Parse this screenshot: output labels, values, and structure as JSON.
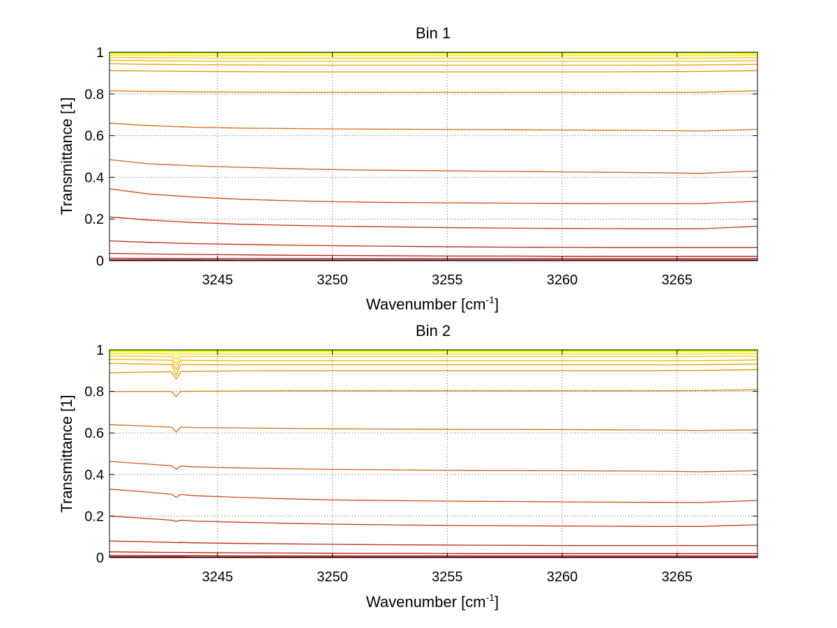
{
  "chart_data": [
    {
      "type": "line",
      "title": "Bin 1",
      "xlabel_main": "Wavenumber [cm",
      "xlabel_sup": "-1",
      "xlabel_end": "]",
      "ylabel": "Transmittance [1]",
      "xlim": [
        3240.3,
        3268.5
      ],
      "ylim": [
        0,
        1
      ],
      "xticks": [
        3245,
        3250,
        3255,
        3260,
        3265
      ],
      "yticks": [
        0,
        0.2,
        0.4,
        0.6,
        0.8,
        1
      ],
      "xtick_labels": [
        "3245",
        "3250",
        "3255",
        "3260",
        "3265"
      ],
      "ytick_labels": [
        "0",
        "0.2",
        "0.4",
        "0.6",
        "0.8",
        "1"
      ],
      "grid": true,
      "x": [
        3240.3,
        3242,
        3244,
        3246,
        3248,
        3250,
        3252,
        3254,
        3256,
        3258,
        3260,
        3262,
        3264,
        3266,
        3268.5
      ],
      "series": [
        {
          "color": "#00e5c8",
          "values": [
            1.0,
            1.0,
            1.0,
            1.0,
            1.0,
            1.0,
            1.0,
            1.0,
            1.0,
            1.0,
            1.0,
            1.0,
            1.0,
            1.0,
            1.0
          ]
        },
        {
          "color": "#c8ff00",
          "values": [
            0.997,
            0.997,
            0.997,
            0.997,
            0.997,
            0.997,
            0.997,
            0.997,
            0.997,
            0.997,
            0.997,
            0.997,
            0.997,
            0.997,
            0.997
          ]
        },
        {
          "color": "#ffff00",
          "values": [
            0.993,
            0.993,
            0.993,
            0.993,
            0.993,
            0.993,
            0.993,
            0.993,
            0.993,
            0.993,
            0.993,
            0.993,
            0.993,
            0.993,
            0.993
          ]
        },
        {
          "color": "#ffe000",
          "values": [
            0.985,
            0.985,
            0.984,
            0.984,
            0.984,
            0.984,
            0.984,
            0.984,
            0.984,
            0.984,
            0.984,
            0.984,
            0.984,
            0.984,
            0.985
          ]
        },
        {
          "color": "#ffc400",
          "values": [
            0.975,
            0.974,
            0.973,
            0.972,
            0.972,
            0.972,
            0.972,
            0.972,
            0.972,
            0.972,
            0.972,
            0.972,
            0.972,
            0.972,
            0.974
          ]
        },
        {
          "color": "#f5b000",
          "values": [
            0.962,
            0.96,
            0.958,
            0.957,
            0.957,
            0.957,
            0.957,
            0.957,
            0.957,
            0.957,
            0.957,
            0.957,
            0.957,
            0.957,
            0.96
          ]
        },
        {
          "color": "#eba000",
          "values": [
            0.945,
            0.942,
            0.94,
            0.939,
            0.938,
            0.938,
            0.938,
            0.938,
            0.938,
            0.938,
            0.938,
            0.938,
            0.938,
            0.939,
            0.942
          ]
        },
        {
          "color": "#e39000",
          "values": [
            0.912,
            0.91,
            0.908,
            0.907,
            0.906,
            0.906,
            0.906,
            0.906,
            0.906,
            0.906,
            0.906,
            0.906,
            0.907,
            0.908,
            0.912
          ]
        },
        {
          "color": "#db7a00",
          "values": [
            0.815,
            0.812,
            0.81,
            0.809,
            0.808,
            0.808,
            0.808,
            0.808,
            0.808,
            0.808,
            0.808,
            0.808,
            0.808,
            0.808,
            0.815
          ]
        },
        {
          "color": "#d96a10",
          "values": [
            0.66,
            0.648,
            0.64,
            0.636,
            0.634,
            0.632,
            0.631,
            0.63,
            0.629,
            0.628,
            0.627,
            0.626,
            0.625,
            0.622,
            0.63
          ]
        },
        {
          "color": "#d65a18",
          "values": [
            0.485,
            0.465,
            0.455,
            0.448,
            0.442,
            0.437,
            0.434,
            0.432,
            0.43,
            0.428,
            0.426,
            0.424,
            0.422,
            0.419,
            0.43
          ]
        },
        {
          "color": "#cf4a18",
          "values": [
            0.345,
            0.32,
            0.305,
            0.295,
            0.288,
            0.283,
            0.28,
            0.278,
            0.277,
            0.276,
            0.275,
            0.274,
            0.274,
            0.274,
            0.285
          ]
        },
        {
          "color": "#c63818",
          "values": [
            0.21,
            0.195,
            0.183,
            0.175,
            0.17,
            0.166,
            0.163,
            0.16,
            0.158,
            0.156,
            0.155,
            0.154,
            0.153,
            0.153,
            0.165
          ]
        },
        {
          "color": "#c02818",
          "values": [
            0.095,
            0.088,
            0.082,
            0.078,
            0.075,
            0.072,
            0.07,
            0.068,
            0.066,
            0.065,
            0.064,
            0.063,
            0.063,
            0.063,
            0.063
          ]
        },
        {
          "color": "#b81a14",
          "values": [
            0.035,
            0.032,
            0.03,
            0.028,
            0.026,
            0.025,
            0.024,
            0.023,
            0.022,
            0.022,
            0.021,
            0.021,
            0.021,
            0.021,
            0.021
          ]
        },
        {
          "color": "#aa0e10",
          "values": [
            0.012,
            0.011,
            0.01,
            0.01,
            0.009,
            0.009,
            0.009,
            0.009,
            0.009,
            0.009,
            0.009,
            0.009,
            0.009,
            0.009,
            0.009
          ]
        },
        {
          "color": "#960808",
          "values": [
            0.004,
            0.004,
            0.004,
            0.003,
            0.003,
            0.003,
            0.003,
            0.003,
            0.003,
            0.003,
            0.003,
            0.003,
            0.003,
            0.003,
            0.003
          ]
        },
        {
          "color": "#800000",
          "values": [
            0.001,
            0.001,
            0.001,
            0.001,
            0.001,
            0.001,
            0.001,
            0.001,
            0.001,
            0.001,
            0.001,
            0.001,
            0.001,
            0.001,
            0.001
          ]
        }
      ]
    },
    {
      "type": "line",
      "title": "Bin 2",
      "xlabel_main": "Wavenumber [cm",
      "xlabel_sup": "-1",
      "xlabel_end": "]",
      "ylabel": "Transmittance [1]",
      "xlim": [
        3240.3,
        3268.5
      ],
      "ylim": [
        0,
        1
      ],
      "xticks": [
        3245,
        3250,
        3255,
        3260,
        3265
      ],
      "yticks": [
        0,
        0.2,
        0.4,
        0.6,
        0.8,
        1
      ],
      "xtick_labels": [
        "3245",
        "3250",
        "3255",
        "3260",
        "3265"
      ],
      "ytick_labels": [
        "0",
        "0.2",
        "0.4",
        "0.6",
        "0.8",
        "1"
      ],
      "grid": true,
      "x": [
        3240.3,
        3242,
        3243.0,
        3243.2,
        3243.4,
        3244,
        3246,
        3248,
        3250,
        3252,
        3254,
        3256,
        3258,
        3260,
        3262,
        3264,
        3266,
        3268.5
      ],
      "series": [
        {
          "color": "#00e5c8",
          "values": [
            1.0,
            1.0,
            1.0,
            0.998,
            1.0,
            1.0,
            1.0,
            1.0,
            1.0,
            1.0,
            1.0,
            1.0,
            1.0,
            1.0,
            1.0,
            1.0,
            1.0,
            1.0
          ]
        },
        {
          "color": "#c8ff00",
          "values": [
            0.996,
            0.996,
            0.996,
            0.99,
            0.996,
            0.996,
            0.996,
            0.996,
            0.996,
            0.996,
            0.996,
            0.996,
            0.996,
            0.996,
            0.996,
            0.996,
            0.996,
            0.996
          ]
        },
        {
          "color": "#ffff00",
          "values": [
            0.991,
            0.991,
            0.991,
            0.975,
            0.991,
            0.991,
            0.991,
            0.991,
            0.991,
            0.991,
            0.991,
            0.991,
            0.991,
            0.991,
            0.991,
            0.991,
            0.991,
            0.991
          ]
        },
        {
          "color": "#ffe000",
          "values": [
            0.982,
            0.982,
            0.981,
            0.955,
            0.981,
            0.981,
            0.981,
            0.981,
            0.981,
            0.981,
            0.981,
            0.981,
            0.981,
            0.981,
            0.981,
            0.981,
            0.981,
            0.982
          ]
        },
        {
          "color": "#ffc400",
          "values": [
            0.97,
            0.969,
            0.968,
            0.93,
            0.968,
            0.968,
            0.968,
            0.968,
            0.968,
            0.968,
            0.968,
            0.968,
            0.968,
            0.968,
            0.968,
            0.968,
            0.968,
            0.97
          ]
        },
        {
          "color": "#f5b000",
          "values": [
            0.955,
            0.952,
            0.95,
            0.905,
            0.95,
            0.949,
            0.948,
            0.948,
            0.948,
            0.948,
            0.948,
            0.948,
            0.948,
            0.948,
            0.948,
            0.948,
            0.948,
            0.952
          ]
        },
        {
          "color": "#eba000",
          "values": [
            0.935,
            0.932,
            0.93,
            0.88,
            0.93,
            0.929,
            0.928,
            0.928,
            0.928,
            0.928,
            0.928,
            0.928,
            0.928,
            0.928,
            0.928,
            0.928,
            0.929,
            0.932
          ]
        },
        {
          "color": "#e39000",
          "values": [
            0.89,
            0.893,
            0.895,
            0.86,
            0.895,
            0.897,
            0.899,
            0.9,
            0.9,
            0.9,
            0.9,
            0.9,
            0.9,
            0.9,
            0.9,
            0.9,
            0.901,
            0.905
          ]
        },
        {
          "color": "#db7a00",
          "values": [
            0.8,
            0.8,
            0.8,
            0.775,
            0.8,
            0.801,
            0.802,
            0.803,
            0.803,
            0.803,
            0.803,
            0.803,
            0.803,
            0.803,
            0.803,
            0.803,
            0.804,
            0.808
          ]
        },
        {
          "color": "#d96a10",
          "values": [
            0.64,
            0.633,
            0.628,
            0.605,
            0.628,
            0.626,
            0.624,
            0.622,
            0.62,
            0.619,
            0.618,
            0.617,
            0.617,
            0.616,
            0.615,
            0.614,
            0.612,
            0.615
          ]
        },
        {
          "color": "#d65a18",
          "values": [
            0.463,
            0.45,
            0.442,
            0.425,
            0.441,
            0.437,
            0.432,
            0.428,
            0.425,
            0.423,
            0.421,
            0.42,
            0.419,
            0.418,
            0.417,
            0.416,
            0.413,
            0.418
          ]
        },
        {
          "color": "#cf4a18",
          "values": [
            0.33,
            0.315,
            0.305,
            0.29,
            0.304,
            0.298,
            0.29,
            0.283,
            0.278,
            0.275,
            0.273,
            0.271,
            0.27,
            0.268,
            0.267,
            0.266,
            0.265,
            0.275
          ]
        },
        {
          "color": "#c63818",
          "values": [
            0.2,
            0.188,
            0.18,
            0.175,
            0.18,
            0.176,
            0.17,
            0.165,
            0.161,
            0.158,
            0.156,
            0.154,
            0.153,
            0.152,
            0.151,
            0.15,
            0.15,
            0.158
          ]
        },
        {
          "color": "#c02818",
          "values": [
            0.08,
            0.076,
            0.073,
            0.072,
            0.073,
            0.071,
            0.068,
            0.066,
            0.064,
            0.062,
            0.061,
            0.06,
            0.059,
            0.058,
            0.058,
            0.058,
            0.058,
            0.058
          ]
        },
        {
          "color": "#b81a14",
          "values": [
            0.028,
            0.026,
            0.025,
            0.025,
            0.025,
            0.024,
            0.023,
            0.022,
            0.021,
            0.02,
            0.02,
            0.019,
            0.019,
            0.019,
            0.019,
            0.019,
            0.019,
            0.019
          ]
        },
        {
          "color": "#aa0e10",
          "values": [
            0.01,
            0.01,
            0.009,
            0.009,
            0.009,
            0.009,
            0.008,
            0.008,
            0.008,
            0.008,
            0.008,
            0.008,
            0.008,
            0.008,
            0.008,
            0.008,
            0.008,
            0.008
          ]
        },
        {
          "color": "#960808",
          "values": [
            0.004,
            0.004,
            0.004,
            0.004,
            0.004,
            0.003,
            0.003,
            0.003,
            0.003,
            0.003,
            0.003,
            0.003,
            0.003,
            0.003,
            0.003,
            0.003,
            0.003,
            0.003
          ]
        },
        {
          "color": "#800000",
          "values": [
            0.001,
            0.001,
            0.001,
            0.001,
            0.001,
            0.001,
            0.001,
            0.001,
            0.001,
            0.001,
            0.001,
            0.001,
            0.001,
            0.001,
            0.001,
            0.001,
            0.001,
            0.001
          ]
        }
      ]
    }
  ]
}
